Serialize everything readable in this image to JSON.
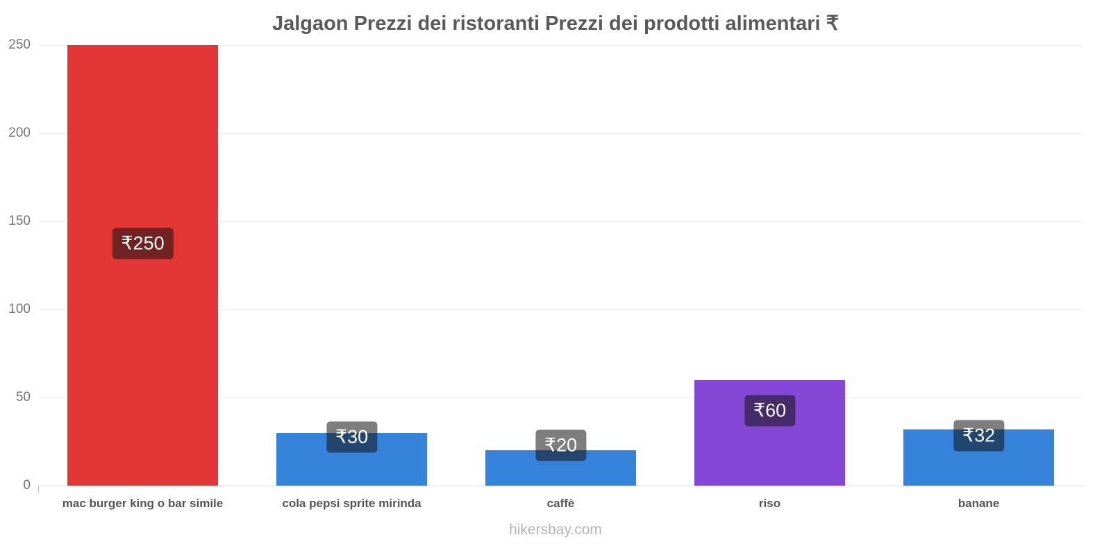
{
  "title": "Jalgaon Prezzi dei ristoranti Prezzi dei prodotti alimentari ₹",
  "footer": "hikersbay.com",
  "chart_data": {
    "type": "bar",
    "title": "Jalgaon Prezzi dei ristoranti Prezzi dei prodotti alimentari ₹",
    "xlabel": "",
    "ylabel": "",
    "categories": [
      "mac burger king o bar simile",
      "cola pepsi sprite mirinda",
      "caffè",
      "riso",
      "banane"
    ],
    "values": [
      250,
      30,
      20,
      60,
      32
    ],
    "value_labels": [
      "₹250",
      "₹30",
      "₹20",
      "₹60",
      "₹32"
    ],
    "bar_colors": [
      "#e23734",
      "#3583db",
      "#3583db",
      "#8447d6",
      "#3583db"
    ],
    "currency": "₹",
    "ylim": [
      0,
      250
    ],
    "yticks": [
      0,
      50,
      100,
      150,
      200,
      250
    ],
    "grid": true,
    "legend": "none"
  }
}
